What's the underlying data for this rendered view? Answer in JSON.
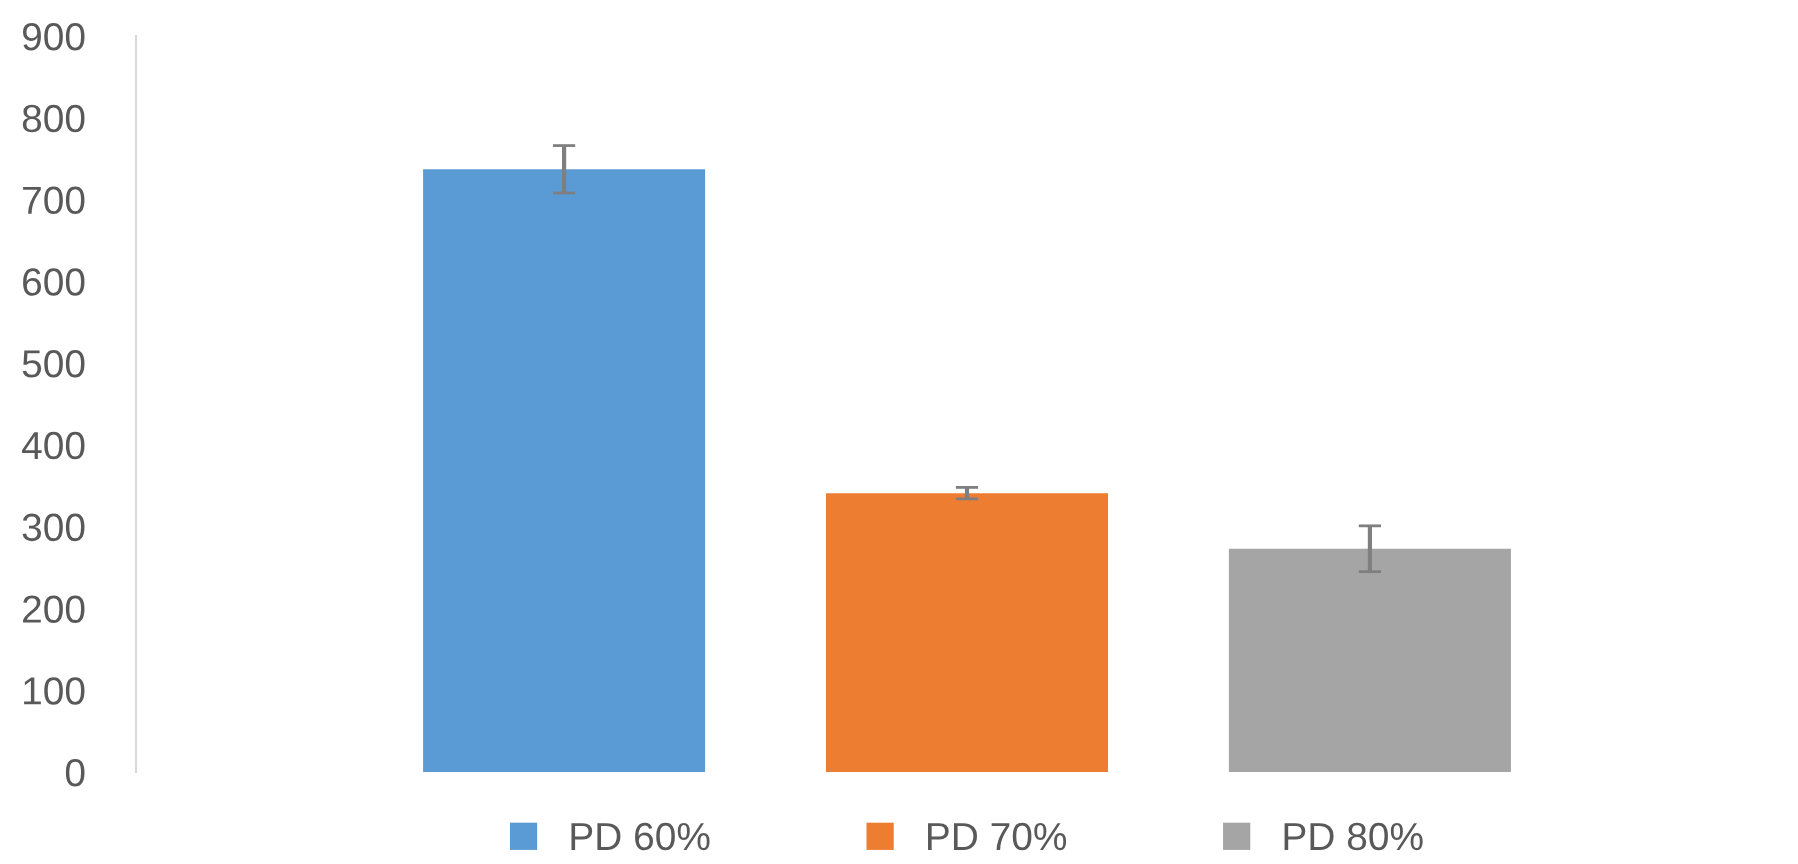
{
  "chart_data": {
    "type": "bar",
    "categories": [
      null
    ],
    "series": [
      {
        "name": "PD 60%",
        "color": "#5b9bd5",
        "values": [
          737
        ],
        "errors": [
          29
        ]
      },
      {
        "name": "PD 70%",
        "color": "#ed7d31",
        "values": [
          341
        ],
        "errors": [
          7
        ]
      },
      {
        "name": "PD 80%",
        "color": "#a5a5a5",
        "values": [
          273
        ],
        "errors": [
          28
        ]
      }
    ],
    "ylim": [
      0,
      900
    ],
    "yticks": [
      0,
      100,
      200,
      300,
      400,
      500,
      600,
      700,
      800,
      900
    ],
    "grid": false,
    "legend": "bottom"
  }
}
